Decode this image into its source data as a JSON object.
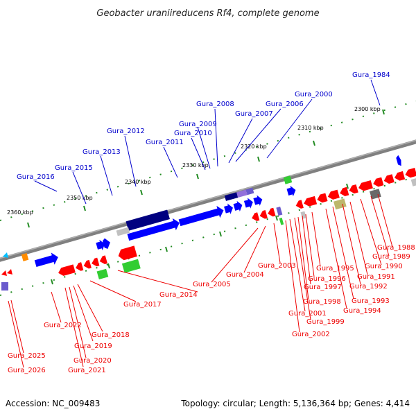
{
  "title": "Geobacter uraniireducens Rf4, complete genome",
  "footer": {
    "accession": "Accession: NC_009483",
    "summary": "Topology: circular; Length: 5,136,364 bp; Genes: 4,414"
  },
  "scale_labels": [
    "2300 kbp",
    "2310 kbp",
    "2320 kbp",
    "2330 kbp",
    "2340 kbp",
    "2350 kbp",
    "2360 kbp"
  ],
  "forward_genes": [
    {
      "label": "Gura_1984",
      "color": "#0000ff"
    },
    {
      "label": "Gura_2000",
      "color": "#0000ff"
    },
    {
      "label": "Gura_2006",
      "color": "#0000ff"
    },
    {
      "label": "Gura_2007",
      "color": "#0000ff"
    },
    {
      "label": "Gura_2008",
      "color": "#0000ff"
    },
    {
      "label": "Gura_2009",
      "color": "#0000ff"
    },
    {
      "label": "Gura_2010",
      "color": "#0000ff"
    },
    {
      "label": "Gura_2011",
      "color": "#0000ff"
    },
    {
      "label": "Gura_2012",
      "color": "#0000ff"
    },
    {
      "label": "Gura_2013",
      "color": "#0000ff"
    },
    {
      "label": "Gura_2015",
      "color": "#0000ff"
    },
    {
      "label": "Gura_2016",
      "color": "#0000ff"
    }
  ],
  "reverse_genes": [
    {
      "label": "Gura_1988",
      "color": "#ff0000"
    },
    {
      "label": "Gura_1989",
      "color": "#ff0000"
    },
    {
      "label": "Gura_1990",
      "color": "#ff0000"
    },
    {
      "label": "Gura_1991",
      "color": "#ff0000"
    },
    {
      "label": "Gura_1992",
      "color": "#ff0000"
    },
    {
      "label": "Gura_1993",
      "color": "#ff0000"
    },
    {
      "label": "Gura_1994",
      "color": "#ff0000"
    },
    {
      "label": "Gura_1995",
      "color": "#ff0000"
    },
    {
      "label": "Gura_1996",
      "color": "#ff0000"
    },
    {
      "label": "Gura_1997",
      "color": "#ff0000"
    },
    {
      "label": "Gura_1998",
      "color": "#ff0000"
    },
    {
      "label": "Gura_1999",
      "color": "#ff0000"
    },
    {
      "label": "Gura_2001",
      "color": "#ff0000"
    },
    {
      "label": "Gura_2002",
      "color": "#ff0000"
    },
    {
      "label": "Gura_2003",
      "color": "#ff0000"
    },
    {
      "label": "Gura_2004",
      "color": "#ff0000"
    },
    {
      "label": "Gura_2005",
      "color": "#ff0000"
    },
    {
      "label": "Gura_2014",
      "color": "#ff0000"
    },
    {
      "label": "Gura_2017",
      "color": "#ff0000"
    },
    {
      "label": "Gura_2018",
      "color": "#ff0000"
    },
    {
      "label": "Gura_2019",
      "color": "#ff0000"
    },
    {
      "label": "Gura_2020",
      "color": "#ff0000"
    },
    {
      "label": "Gura_2021",
      "color": "#ff0000"
    },
    {
      "label": "Gura_2022",
      "color": "#ff0000"
    },
    {
      "label": "Gura_2025",
      "color": "#ff0000"
    },
    {
      "label": "Gura_2026",
      "color": "#ff0000"
    }
  ],
  "colors": {
    "backbone": "#808080",
    "tick": "#228b22",
    "forward": "#0000ff",
    "reverse": "#ff0000",
    "forward_line": "#0000cc",
    "reverse_line": "#ee0000"
  }
}
